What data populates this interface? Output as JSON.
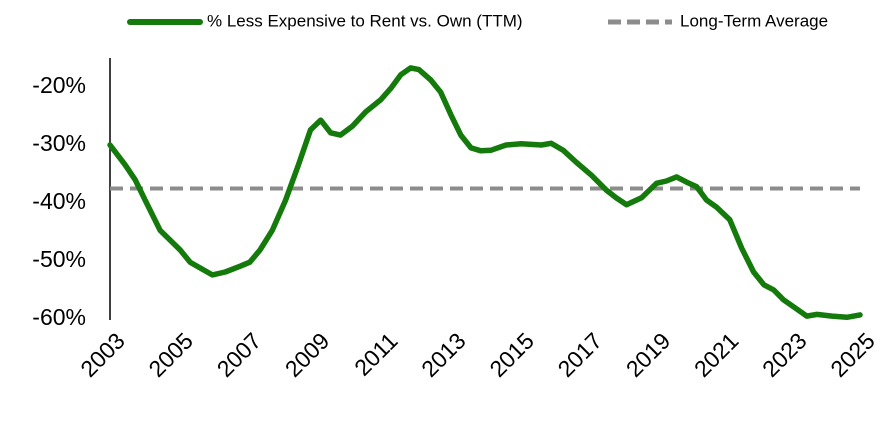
{
  "chart_data": {
    "type": "line",
    "xlim": [
      2003,
      2025
    ],
    "xticks": [
      2003,
      2005,
      2007,
      2009,
      2011,
      2013,
      2015,
      2017,
      2019,
      2021,
      2023,
      2025
    ],
    "ylim": [
      -60,
      -15
    ],
    "yticks": [
      {
        "value": -20,
        "label": "-20%"
      },
      {
        "value": -30,
        "label": "-30%"
      },
      {
        "value": -40,
        "label": "-40%"
      },
      {
        "value": -50,
        "label": "-50%"
      },
      {
        "value": -60,
        "label": "-60%"
      }
    ],
    "grid": false,
    "legend": "top",
    "series": [
      {
        "name": "% Less Expensive to Rent vs. Own (TTM)",
        "color": "#157a0c",
        "dash": false,
        "x": [
          2003,
          2003.44,
          2003.74,
          2004.03,
          2004.47,
          2005.06,
          2005.35,
          2006,
          2006.38,
          2006.82,
          2007.1,
          2007.4,
          2007.76,
          2008.15,
          2008.53,
          2008.88,
          2009.18,
          2009.47,
          2009.76,
          2010.12,
          2010.5,
          2010.94,
          2011.24,
          2011.53,
          2011.82,
          2012.06,
          2012.41,
          2012.7,
          2013,
          2013.29,
          2013.59,
          2013.88,
          2014.18,
          2014.62,
          2015.06,
          2015.65,
          2015.94,
          2016.29,
          2016.68,
          2017.12,
          2017.56,
          2017.85,
          2018.15,
          2018.59,
          2019.03,
          2019.32,
          2019.62,
          2019.91,
          2020.21,
          2020.5,
          2020.79,
          2021.18,
          2021.53,
          2021.88,
          2022.18,
          2022.47,
          2022.76,
          2023.15,
          2023.44,
          2023.74,
          2024.18,
          2024.62,
          2025
        ],
        "values": [
          -30,
          -33.4,
          -36,
          -39.5,
          -44.7,
          -48.1,
          -50.2,
          -52.4,
          -51.9,
          -50.9,
          -50.2,
          -48.1,
          -44.7,
          -39.5,
          -33.4,
          -27.4,
          -25.7,
          -27.9,
          -28.3,
          -26.7,
          -24.3,
          -22.2,
          -20.2,
          -17.9,
          -16.7,
          -17,
          -18.8,
          -20.9,
          -24.8,
          -28.3,
          -30.5,
          -31,
          -30.9,
          -30,
          -29.8,
          -30,
          -29.7,
          -30.9,
          -33,
          -35.2,
          -37.8,
          -39.1,
          -40.3,
          -39.1,
          -36.6,
          -36.2,
          -35.5,
          -36.4,
          -37.2,
          -39.5,
          -40.7,
          -42.9,
          -47.8,
          -51.9,
          -54.1,
          -55,
          -56.7,
          -58.3,
          -59.5,
          -59.2,
          -59.5,
          -59.7,
          -59.3
        ]
      },
      {
        "name": "Long-Term Average",
        "color": "#8c8c8c",
        "dash": true,
        "x": [
          2003,
          2025
        ],
        "values": [
          -37.5,
          -37.5
        ]
      }
    ]
  }
}
